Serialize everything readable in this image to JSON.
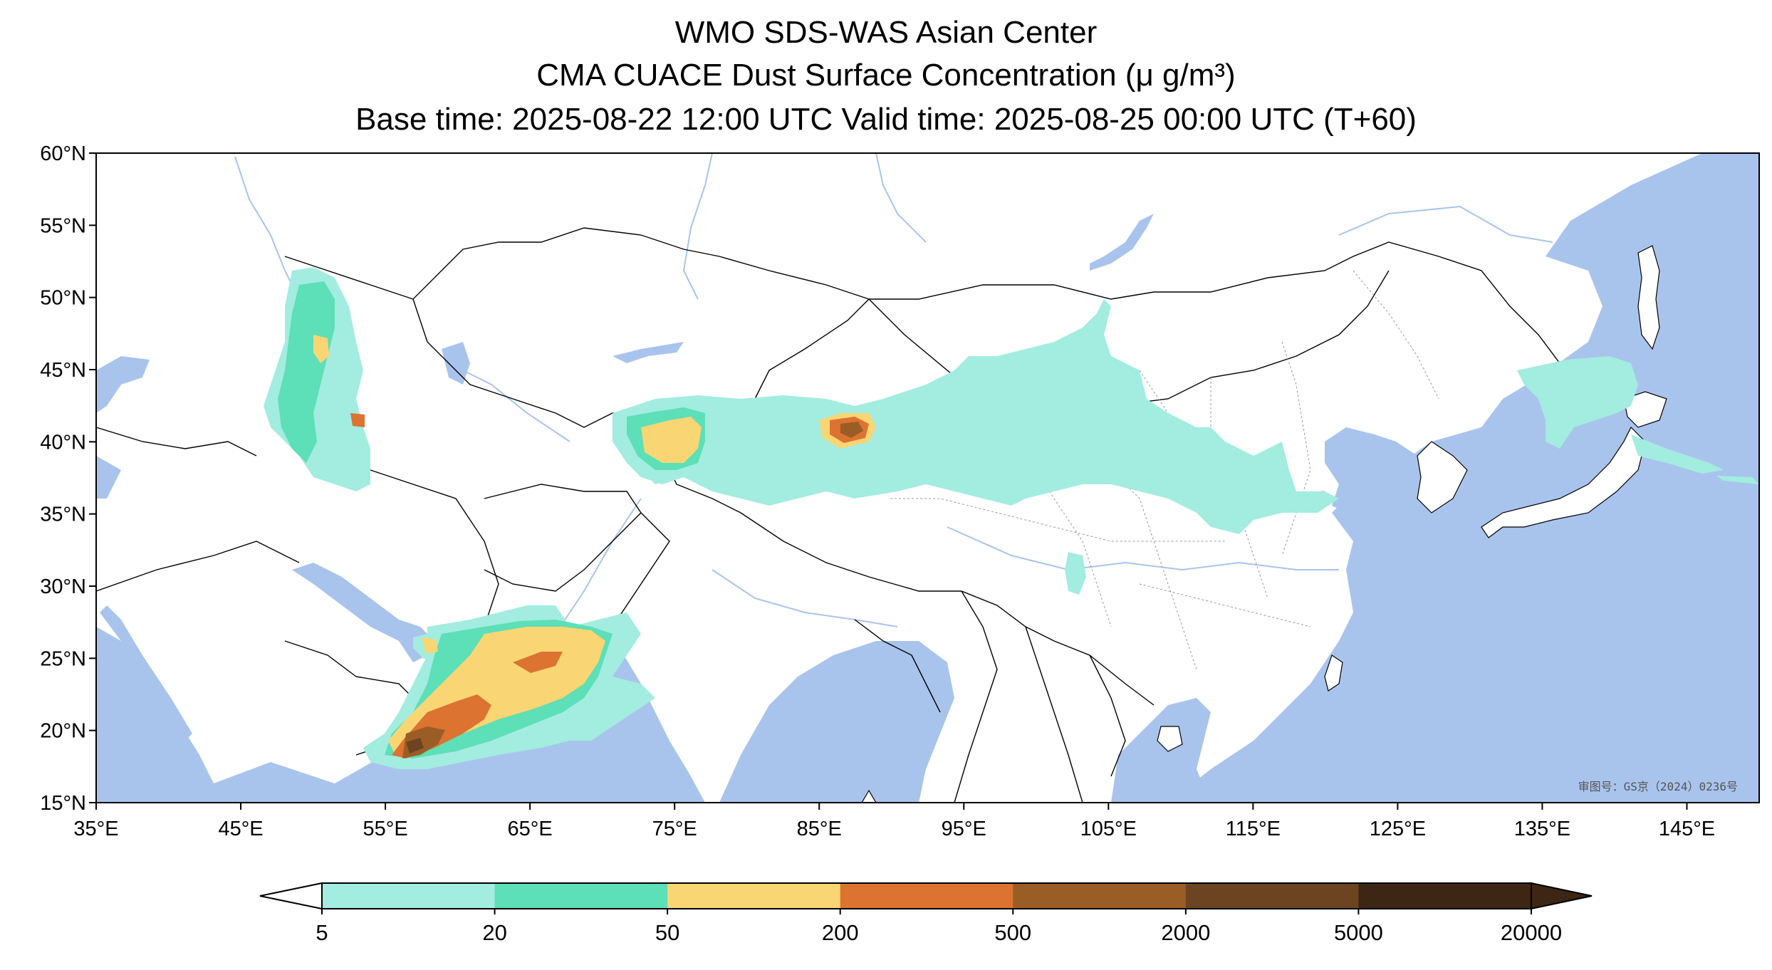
{
  "titles": {
    "line1": "WMO SDS-WAS Asian Center",
    "line2": "CMA CUACE Dust Surface Concentration (μ g/m³)",
    "line3": "Base time: 2025-08-22 12:00 UTC Valid time: 2025-08-25 00:00 UTC (T+60)"
  },
  "axes": {
    "lat_ticks": [
      "60°N",
      "55°N",
      "50°N",
      "45°N",
      "40°N",
      "35°N",
      "30°N",
      "25°N",
      "20°N",
      "15°N"
    ],
    "lon_ticks": [
      "35°E",
      "45°E",
      "55°E",
      "65°E",
      "75°E",
      "85°E",
      "95°E",
      "105°E",
      "115°E",
      "125°E",
      "135°E",
      "145°E"
    ],
    "lon_range": [
      35,
      150
    ],
    "lat_range": [
      15,
      60
    ]
  },
  "colorbar": {
    "labels": [
      "5",
      "20",
      "50",
      "200",
      "500",
      "2000",
      "5000",
      "20000"
    ],
    "colors": [
      "#a3ece0",
      "#5ddfb7",
      "#f9d673",
      "#dc7331",
      "#9b5d26",
      "#6c4421",
      "#3d2614"
    ],
    "extend": "both"
  },
  "colors": {
    "ocean": "#a9c4ec",
    "land": "#ffffff",
    "river": "#a9c4ec",
    "border": "#000000"
  },
  "watermark": "审图号：GS京（2024）0236号"
}
